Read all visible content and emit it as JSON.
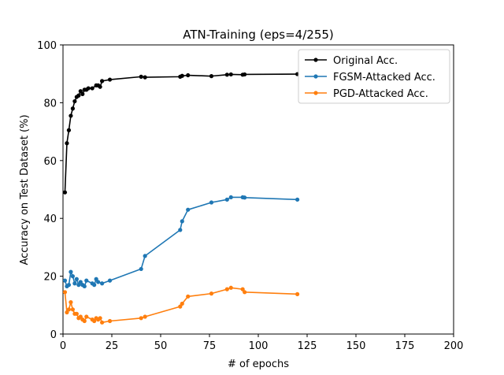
{
  "chart_data": {
    "type": "line",
    "title": "ATN-Training (eps=4/255)",
    "xlabel": "# of epochs",
    "ylabel": "Accuracy on Test Dataset (%)",
    "xlim": [
      0,
      200
    ],
    "ylim": [
      0,
      100
    ],
    "xticks": [
      0,
      25,
      50,
      75,
      100,
      125,
      150,
      175,
      200
    ],
    "yticks": [
      0,
      20,
      40,
      60,
      80,
      100
    ],
    "grid": false,
    "legend_position": "top-right",
    "series": [
      {
        "name": "Original Acc.",
        "color": "#000000",
        "x": [
          1,
          2,
          3,
          4,
          5,
          6,
          7,
          8,
          9,
          10,
          11,
          12,
          13,
          15,
          17,
          18,
          19,
          20,
          24,
          40,
          42,
          60,
          61,
          64,
          76,
          84,
          86,
          92,
          93,
          120
        ],
        "y": [
          49,
          66,
          70.5,
          75.5,
          78,
          80.5,
          82,
          82.5,
          84,
          83,
          84.5,
          84.5,
          85,
          85,
          86,
          86,
          85.5,
          87.5,
          88,
          89,
          88.8,
          89,
          89.3,
          89.5,
          89.2,
          89.7,
          89.8,
          89.7,
          89.8,
          89.9
        ]
      },
      {
        "name": "FGSM-Attacked Acc.",
        "color": "#1f77b4",
        "x": [
          1,
          2,
          3,
          4,
          5,
          6,
          7,
          8,
          9,
          10,
          11,
          12,
          15,
          16,
          17,
          18,
          20,
          24,
          40,
          42,
          60,
          61,
          64,
          76,
          84,
          86,
          92,
          93,
          120
        ],
        "y": [
          18.5,
          16.5,
          17,
          21.5,
          20,
          17.5,
          19,
          17,
          18,
          17,
          16.5,
          18.5,
          17.5,
          17,
          19,
          18,
          17.5,
          18.5,
          22.5,
          27,
          36,
          39,
          43,
          45.5,
          46.5,
          47.3,
          47.3,
          47.2,
          46.5
        ]
      },
      {
        "name": "PGD-Attacked Acc.",
        "color": "#ff7f0e",
        "x": [
          1,
          2,
          3,
          4,
          5,
          6,
          7,
          8,
          9,
          10,
          11,
          12,
          15,
          16,
          17,
          18,
          19,
          20,
          24,
          40,
          42,
          60,
          61,
          64,
          76,
          84,
          86,
          92,
          93,
          120
        ],
        "y": [
          14.5,
          7.5,
          8.5,
          11,
          8.5,
          7,
          7,
          5.5,
          6,
          5,
          4.5,
          6,
          5,
          4.5,
          5.5,
          5,
          5.5,
          4,
          4.5,
          5.5,
          6,
          9.5,
          10.5,
          13,
          14,
          15.5,
          16,
          15.5,
          14.5,
          13.8
        ]
      }
    ]
  }
}
